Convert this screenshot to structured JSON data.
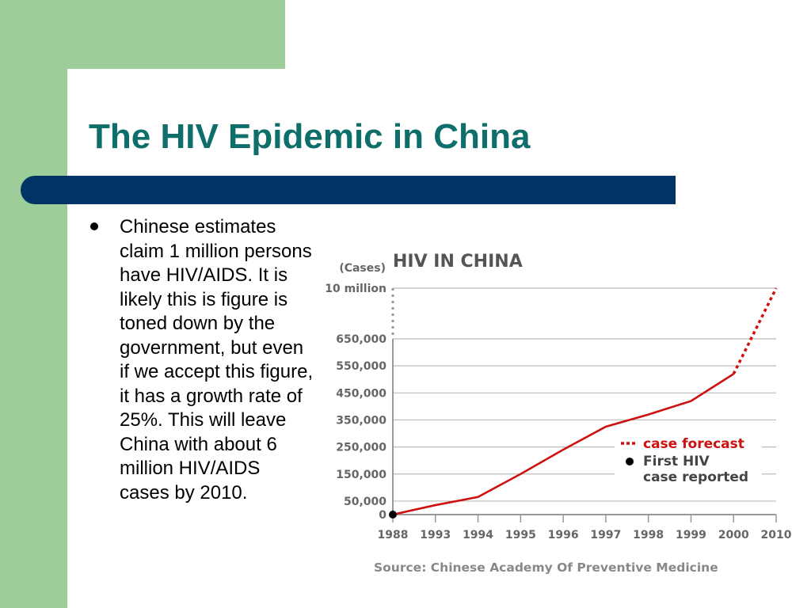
{
  "slide": {
    "title": "The HIV Epidemic in China",
    "bullet": "Chinese estimates claim 1 million persons have HIV/AIDS. It is likely this is figure is toned down by the government, but even if we accept this figure, it has a growth rate of 25%. This will leave China with about 6 million HIV/AIDS cases by 2010."
  },
  "colors": {
    "title": "#0e6e6a",
    "title_bar": "#003366",
    "accent_green": "#9dcd98",
    "series": "#cc1111",
    "grid": "#bbbbbb"
  },
  "chart_data": {
    "type": "line",
    "title": "HIV IN CHINA",
    "ylabel": "(Cases)",
    "source": "Source: Chinese Academy Of Preventive Medicine",
    "x": [
      "1988",
      "1993",
      "1994",
      "1995",
      "1996",
      "1997",
      "1998",
      "1999",
      "2000",
      "2010"
    ],
    "y_ticks": [
      "0",
      "50,000",
      "150,000",
      "250,000",
      "350,000",
      "450,000",
      "550,000",
      "650,000",
      "10 million"
    ],
    "y_tick_values": [
      0,
      50000,
      150000,
      250000,
      350000,
      450000,
      550000,
      650000,
      10000000
    ],
    "axis_break": "between 650,000 and 10 million",
    "series": [
      {
        "name": "case forecast",
        "style": "dotted",
        "points": [
          [
            "2000",
            520000
          ],
          [
            "2010",
            10000000
          ]
        ]
      }
    ],
    "reported_series": {
      "style": "solid",
      "points": [
        [
          "1988",
          0
        ],
        [
          "1993",
          35000
        ],
        [
          "1994",
          65000
        ],
        [
          "1995",
          150000
        ],
        [
          "1996",
          240000
        ],
        [
          "1997",
          325000
        ],
        [
          "1998",
          370000
        ],
        [
          "1999",
          420000
        ],
        [
          "2000",
          520000
        ]
      ]
    },
    "markers": [
      {
        "label": "First HIV case reported",
        "x": "1988",
        "y": 0
      }
    ],
    "legend": {
      "placement": "lower-right",
      "items": [
        "case forecast",
        "First HIV",
        "case reported"
      ]
    },
    "grid": true
  }
}
